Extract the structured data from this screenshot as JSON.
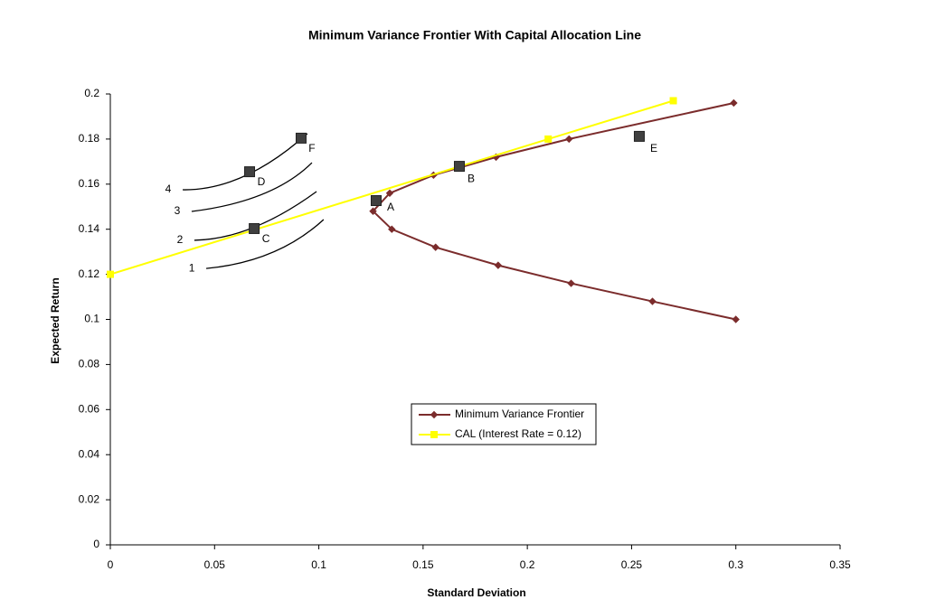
{
  "chart_data": {
    "type": "line",
    "title": "Minimum Variance Frontier With Capital Allocation Line",
    "x_label": "Standard Deviation",
    "y_label": "Expected Return",
    "xlim": [
      0,
      0.35
    ],
    "xticks": [
      0,
      0.05,
      0.1,
      0.15,
      0.2,
      0.25,
      0.3,
      0.35
    ],
    "ylim": [
      0,
      0.2
    ],
    "yticks": [
      0,
      0.02,
      0.04,
      0.06,
      0.08,
      0.1,
      0.12,
      0.14,
      0.16,
      0.18,
      0.2
    ],
    "series": [
      {
        "name": "Minimum Variance Frontier",
        "color": "#7b2c2c",
        "marker": "diamond",
        "x": [
          0.3,
          0.26,
          0.221,
          0.186,
          0.156,
          0.135,
          0.126,
          0.134,
          0.155,
          0.185,
          0.22,
          0.299
        ],
        "values": [
          0.1,
          0.108,
          0.116,
          0.124,
          0.132,
          0.14,
          0.148,
          0.156,
          0.164,
          0.172,
          0.18,
          0.196
        ]
      },
      {
        "name": "CAL (Interest Rate = 0.12)",
        "color": "#ffff00",
        "marker": "square",
        "x": [
          0,
          0.21,
          0.27
        ],
        "values": [
          0.12,
          0.18,
          0.197
        ]
      }
    ],
    "points": [
      {
        "label": "A",
        "x": 0.1275,
        "y": 0.1527
      },
      {
        "label": "B",
        "x": 0.1674,
        "y": 0.1679
      },
      {
        "label": "C",
        "x": 0.069,
        "y": 0.1403
      },
      {
        "label": "D",
        "x": 0.0668,
        "y": 0.1655
      },
      {
        "label": "E",
        "x": 0.2537,
        "y": 0.1812
      },
      {
        "label": "F",
        "x": 0.0915,
        "y": 0.1804
      }
    ],
    "curves": [
      {
        "label": "1",
        "x": [
          0.046,
          0.0772,
          0.1023
        ],
        "y": [
          0.1226,
          0.1295,
          0.1443
        ]
      },
      {
        "label": "2",
        "x": [
          0.0403,
          0.0685,
          0.0989
        ],
        "y": [
          0.1351,
          0.1407,
          0.1567
        ]
      },
      {
        "label": "3",
        "x": [
          0.039,
          0.0729,
          0.0967
        ],
        "y": [
          0.1479,
          0.1555,
          0.1695
        ]
      },
      {
        "label": "4",
        "x": [
          0.0347,
          0.0642,
          0.0945
        ],
        "y": [
          0.1575,
          0.1635,
          0.1824
        ]
      }
    ]
  }
}
